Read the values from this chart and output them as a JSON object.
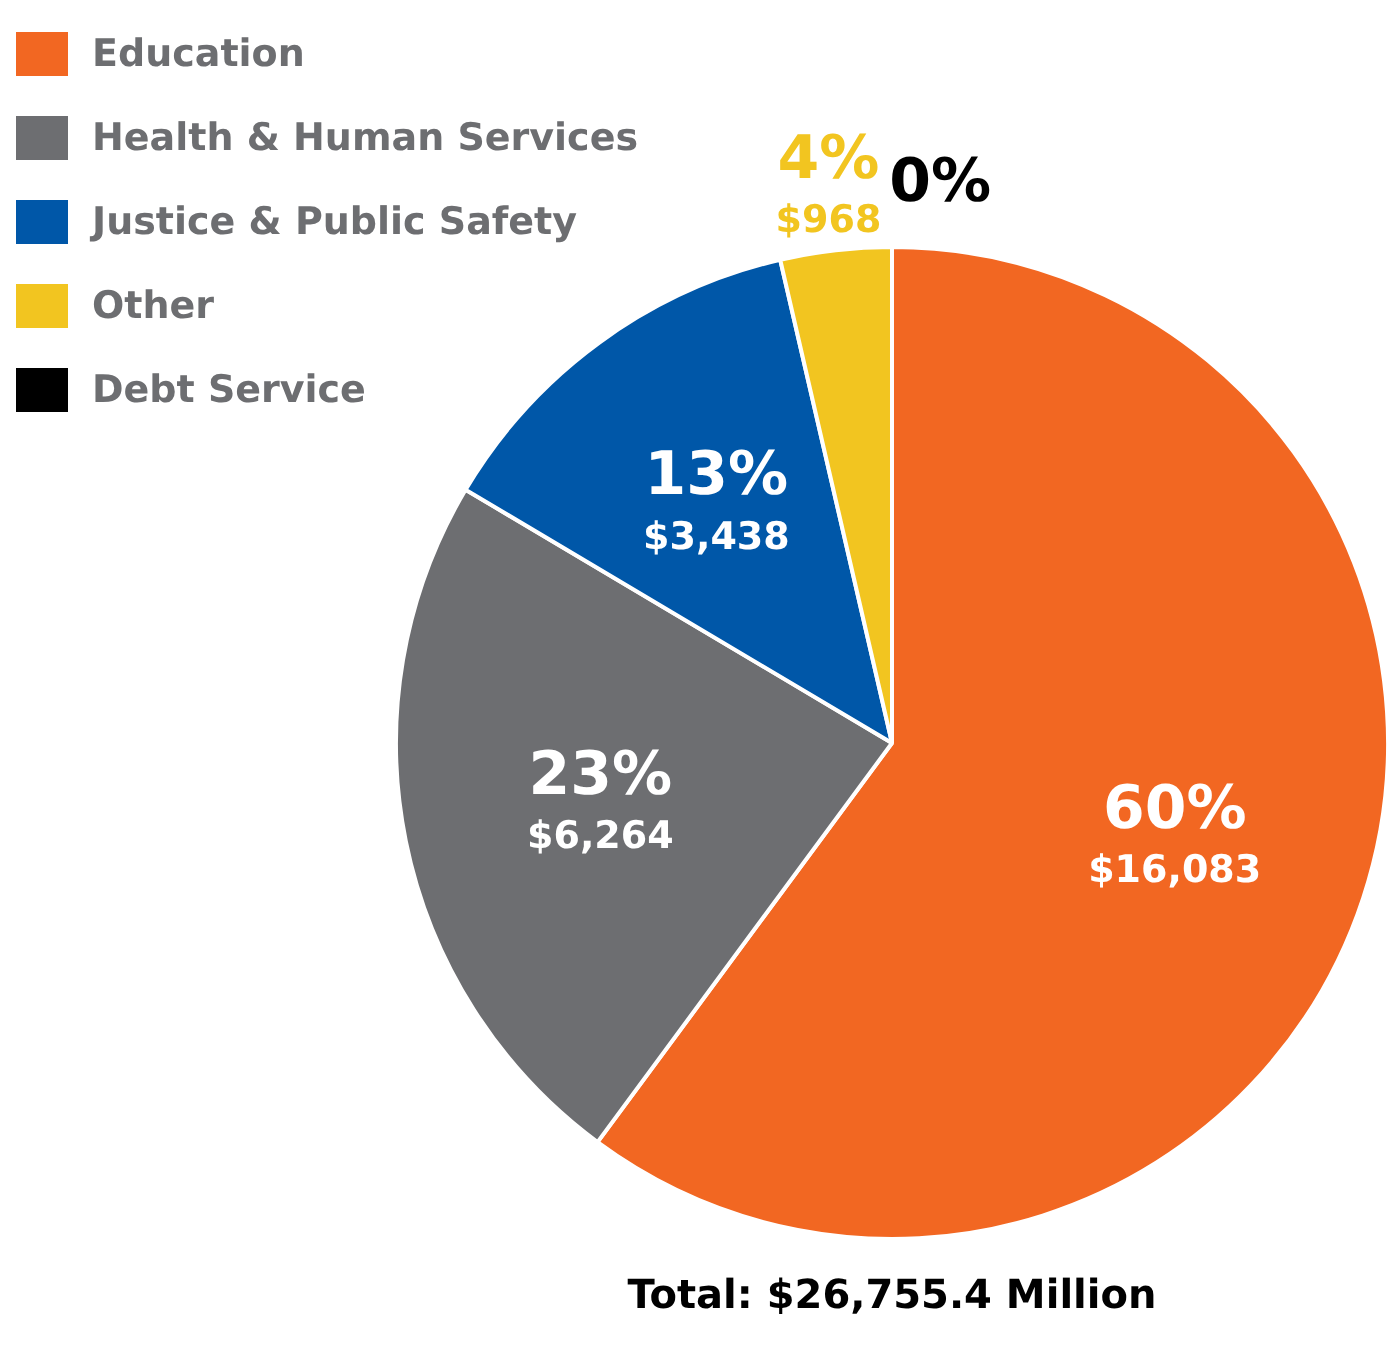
{
  "chart_data": {
    "type": "pie",
    "title": "Total: $26,755.4 Million",
    "categories": [
      "Education",
      "Health & Human Services",
      "Justice & Public Safety",
      "Other",
      "Debt Service"
    ],
    "values": [
      16083,
      6264,
      3438,
      968,
      0
    ],
    "colors": [
      "#f26722",
      "#6d6e71",
      "#0057a8",
      "#f2c520",
      "#000000"
    ],
    "value_labels": [
      "60%\n$16,083",
      "23%\n$6,264",
      "13%\n$3,438",
      "4%\n$968",
      "0%"
    ],
    "legend": "top left"
  }
}
